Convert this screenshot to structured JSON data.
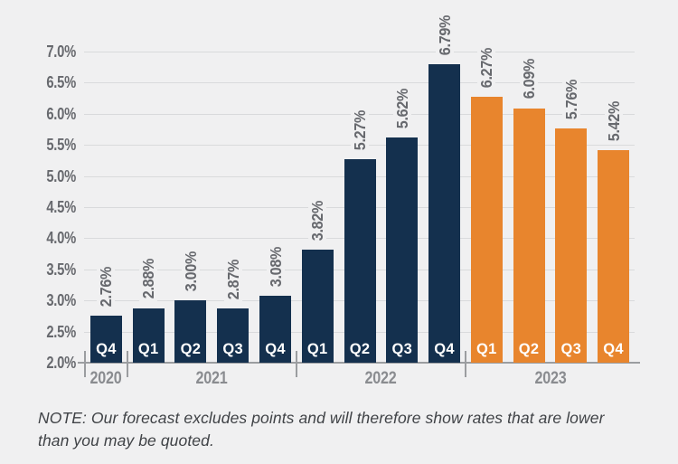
{
  "page": {
    "background": "#f0f0f1"
  },
  "chart_data": {
    "type": "bar",
    "title": "",
    "categories": [
      "Q4",
      "Q1",
      "Q2",
      "Q3",
      "Q4",
      "Q1",
      "Q2",
      "Q3",
      "Q4",
      "Q1",
      "Q2",
      "Q3",
      "Q4"
    ],
    "values": [
      2.76,
      2.88,
      3.0,
      2.87,
      3.08,
      3.82,
      5.27,
      5.62,
      6.79,
      6.27,
      6.09,
      5.76,
      5.42
    ],
    "value_labels": [
      "2.76%",
      "2.88%",
      "3.00%",
      "2.87%",
      "3.08%",
      "3.82%",
      "5.27%",
      "5.62%",
      "6.79%",
      "6.27%",
      "6.09%",
      "5.76%",
      "5.42%"
    ],
    "groups": [
      {
        "year": "2020",
        "count": 1
      },
      {
        "year": "2021",
        "count": 4
      },
      {
        "year": "2022",
        "count": 4
      },
      {
        "year": "2023",
        "count": 4
      }
    ],
    "y_tick_labels": [
      "7.0%",
      "6.5%",
      "6.0%",
      "5.5%",
      "5.0%",
      "4.5%",
      "4.0%",
      "3.5%",
      "3.0%",
      "2.5%",
      "2.0%"
    ],
    "ylim": [
      2.0,
      7.0
    ],
    "grid": true,
    "legend": null,
    "xlabel": "",
    "ylabel": "",
    "forecast_start_index": 9,
    "colors": {
      "historical_bar": "#14304e",
      "forecast_bar": "#e8852d",
      "bar_label_text": "#ffffff"
    }
  },
  "note": {
    "lines": [
      "NOTE: Our forecast excludes points and will therefore show rates that are lower",
      "than you may be quoted."
    ]
  }
}
